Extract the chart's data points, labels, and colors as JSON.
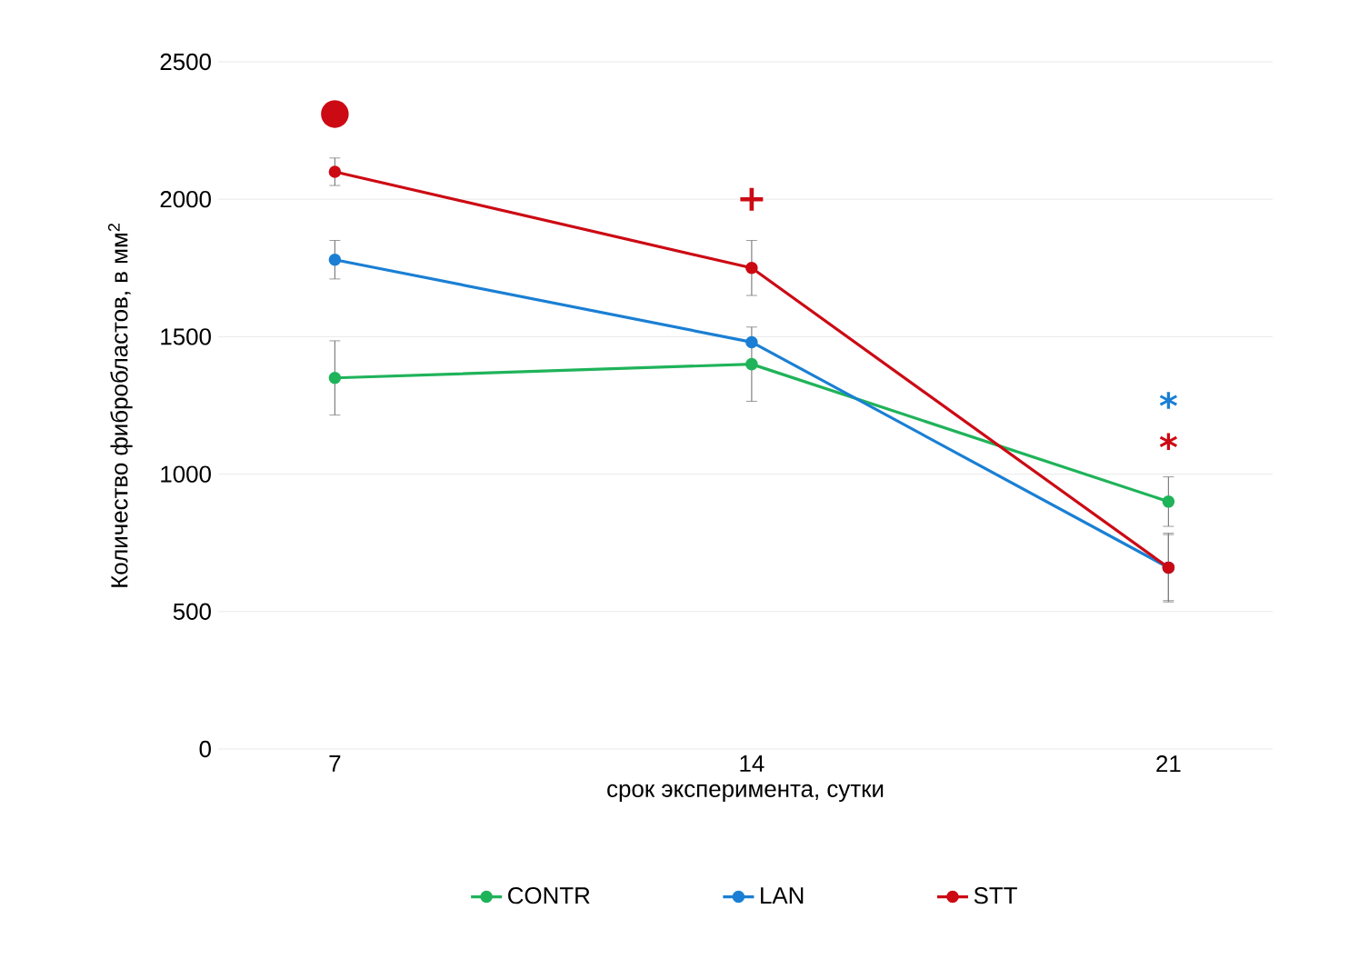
{
  "chart_data": {
    "type": "line",
    "xlabel": "срок эксперимента, сутки",
    "ylabel": "Количество фибробластов, в мм$^{2}$",
    "categories": [
      "7",
      "14",
      "21"
    ],
    "series": [
      {
        "name": "CONTR",
        "color": "#1fb35a",
        "values": [
          1350,
          1400,
          900
        ],
        "errors": [
          135,
          135,
          90
        ]
      },
      {
        "name": "LAN",
        "color": "#1a7fd4",
        "values": [
          1780,
          1480,
          660
        ],
        "errors": [
          70,
          null,
          125
        ]
      },
      {
        "name": "STT",
        "color": "#cc0a14",
        "values": [
          2100,
          1750,
          660
        ],
        "errors": [
          50,
          100,
          120
        ]
      }
    ],
    "ylim": [
      0,
      2500
    ],
    "yticks": [
      0,
      500,
      1000,
      1500,
      2000,
      2500
    ],
    "grid": "y",
    "legend": "bottom",
    "marker": "circle",
    "line_style": "solid",
    "annotations": [
      "●",
      "+",
      "*",
      "*"
    ]
  }
}
